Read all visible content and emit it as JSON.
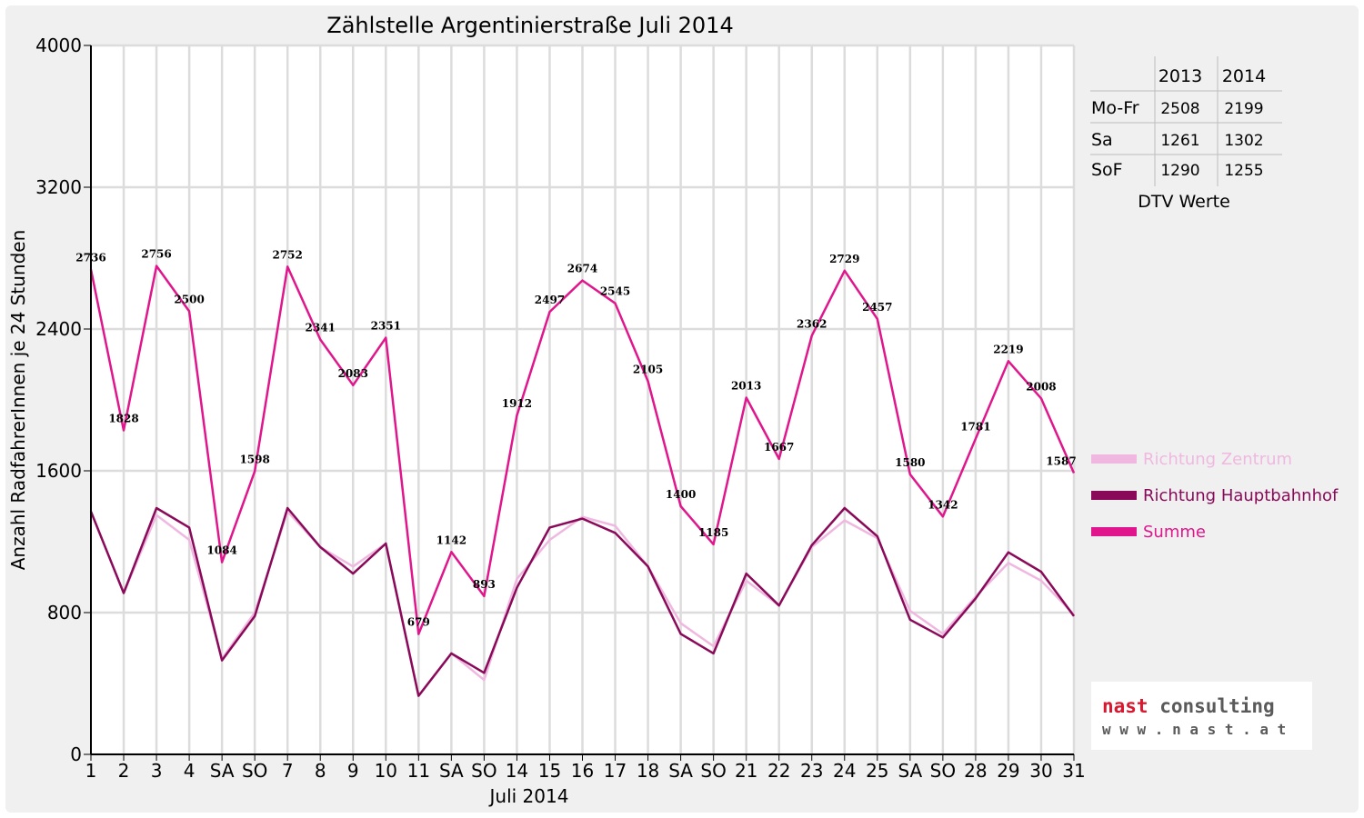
{
  "chart_data": {
    "type": "line",
    "title": "Zählstelle Argentinierstraße Juli 2014",
    "xlabel": "Juli 2014",
    "ylabel": "Anzahl RadfahrerInnen je 24 Stunden",
    "ylim": [
      0,
      4000
    ],
    "yticks": [
      "0",
      "800",
      "1600",
      "2400",
      "3200",
      "4000"
    ],
    "grid": true,
    "legend_position": "right",
    "categories": [
      "1",
      "2",
      "3",
      "4",
      "SA",
      "SO",
      "7",
      "8",
      "9",
      "10",
      "11",
      "SA",
      "SO",
      "14",
      "15",
      "16",
      "17",
      "18",
      "SA",
      "SO",
      "21",
      "22",
      "23",
      "24",
      "25",
      "SA",
      "SO",
      "28",
      "29",
      "30",
      "31"
    ],
    "weekend_label_colors": {
      "SA": "#000000",
      "SO": "#ff0000"
    },
    "series": [
      {
        "name": "Richtung Zentrum",
        "color": "#f0b8e0",
        "values": [
          1370,
          910,
          1350,
          1210,
          540,
          800,
          1370,
          1170,
          1060,
          1190,
          330,
          570,
          420,
          990,
          1210,
          1340,
          1290,
          1060,
          740,
          610,
          980,
          840,
          1170,
          1320,
          1220,
          810,
          680,
          890,
          1080,
          980,
          790
        ]
      },
      {
        "name": "Richtung Hauptbahnhof",
        "color": "#8a0a5a",
        "values": [
          1370,
          910,
          1390,
          1280,
          530,
          780,
          1390,
          1170,
          1020,
          1190,
          330,
          570,
          460,
          940,
          1280,
          1330,
          1250,
          1060,
          680,
          570,
          1020,
          840,
          1180,
          1390,
          1230,
          760,
          660,
          880,
          1140,
          1030,
          780
        ]
      },
      {
        "name": "Summe",
        "color": "#e0168c",
        "values": [
          2736,
          1828,
          2756,
          2500,
          1084,
          1598,
          2752,
          2341,
          2083,
          2351,
          679,
          1142,
          893,
          1912,
          2497,
          2674,
          2545,
          2105,
          1400,
          1185,
          2013,
          1667,
          2362,
          2729,
          2457,
          1580,
          1342,
          1781,
          2219,
          2008,
          1587
        ]
      }
    ],
    "data_labels": [
      "2736",
      "1828",
      "2756",
      "2500",
      "1084",
      "1598",
      "2752",
      "2341",
      "2083",
      "2351",
      "679",
      "1142",
      "893",
      "1912",
      "2497",
      "2674",
      "2545",
      "2105",
      "1400",
      "1185",
      "2013",
      "1667",
      "2362",
      "2729",
      "2457",
      "1580",
      "1342",
      "1781",
      "2219",
      "2008",
      "1587"
    ]
  },
  "dtv_table": {
    "headers": [
      "2013",
      "2014"
    ],
    "rows": [
      {
        "label": "Mo-Fr",
        "v2013": "2508",
        "v2014": "2199"
      },
      {
        "label": "Sa",
        "v2013": "1261",
        "v2014": "1302"
      },
      {
        "label": "SoF",
        "v2013": "1290",
        "v2014": "1255"
      }
    ],
    "caption": "DTV Werte"
  },
  "logo": {
    "line1_nast": "nast",
    "line1_consulting": "consulting",
    "line2": "w w w . n a s t . a t",
    "nast_color": "#d8182e",
    "consulting_color": "#5a5a5a"
  }
}
